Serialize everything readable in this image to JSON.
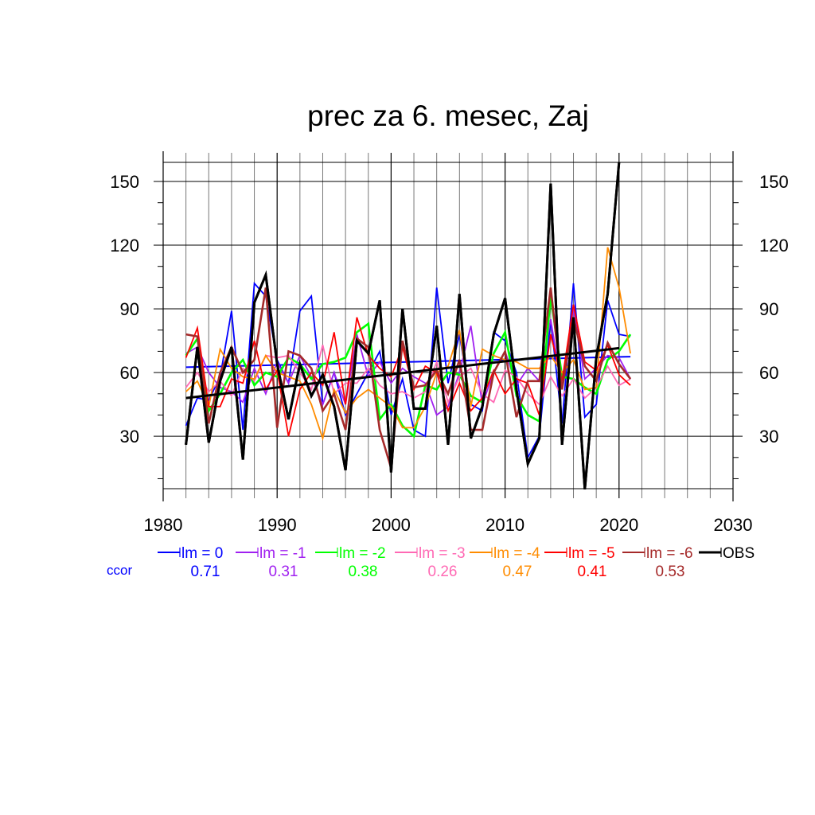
{
  "chart_data": {
    "type": "line",
    "title": "prec za 6. mesec, Zaj",
    "xlabel": "",
    "ylabel": "",
    "xlim": [
      1980,
      2030
    ],
    "ylim": [
      5.3,
      159
    ],
    "x_ticks": [
      1980,
      1990,
      2000,
      2010,
      2020,
      2030
    ],
    "x_tick_labels": [
      "1980",
      "1990",
      "2000",
      "2010",
      "2020",
      "2030"
    ],
    "y_ticks": [
      30,
      60,
      90,
      120,
      150
    ],
    "y_tick_labels": [
      "30",
      "60",
      "90",
      "120",
      "150"
    ],
    "grid": true,
    "years": [
      1982,
      1983,
      1984,
      1985,
      1986,
      1987,
      1988,
      1989,
      1990,
      1991,
      1992,
      1993,
      1994,
      1995,
      1996,
      1997,
      1998,
      1999,
      2000,
      2001,
      2002,
      2003,
      2004,
      2005,
      2006,
      2007,
      2008,
      2009,
      2010,
      2011,
      2012,
      2013,
      2014,
      2015,
      2016,
      2017,
      2018,
      2019,
      2020,
      2021
    ],
    "series": [
      {
        "name": "lm = 0",
        "color": "#0000ff",
        "ccor": "0.71",
        "values": [
          35,
          48,
          47,
          58,
          89,
          33,
          102,
          96,
          66,
          55,
          89,
          96,
          45,
          60,
          40,
          50,
          60,
          70,
          40,
          57,
          33,
          30,
          100,
          55,
          78,
          45,
          42,
          79,
          75,
          60,
          20,
          30,
          85,
          36,
          102,
          39,
          45,
          94,
          78,
          77
        ],
        "trend": [
          62.5,
          67.5
        ]
      },
      {
        "name": "lm = -1",
        "color": "#a020f0",
        "ccor": "0.31",
        "values": [
          69,
          72,
          60,
          53,
          51,
          46,
          62,
          50,
          65,
          55,
          68,
          58,
          45,
          60,
          45,
          78,
          58,
          65,
          55,
          62,
          58,
          55,
          40,
          44,
          60,
          82,
          45,
          60,
          70,
          54,
          62,
          56,
          85,
          52,
          90,
          57,
          62,
          68,
          67,
          57
        ],
        "trend": null
      },
      {
        "name": "lm = -2",
        "color": "#00ff00",
        "ccor": "0.38",
        "values": [
          68,
          76,
          42,
          50,
          60,
          66,
          54,
          60,
          58,
          67,
          64,
          57,
          64,
          65,
          67,
          79,
          83,
          38,
          45,
          35,
          30,
          54,
          52,
          60,
          59,
          49,
          46,
          69,
          79,
          49,
          40,
          37,
          96,
          58,
          57,
          53,
          50,
          66,
          70,
          78
        ],
        "trend": null
      },
      {
        "name": "lm = -3",
        "color": "#ff69b4",
        "ccor": "0.26",
        "values": [
          53,
          60,
          51,
          56,
          49,
          62,
          56,
          68,
          67,
          68,
          60,
          52,
          73,
          50,
          55,
          55,
          62,
          54,
          50,
          51,
          48,
          51,
          65,
          46,
          58,
          62,
          50,
          46,
          61,
          58,
          50,
          45,
          58,
          49,
          57,
          48,
          53,
          63,
          54,
          57
        ],
        "trend": null
      },
      {
        "name": "lm = -4",
        "color": "#ff8c00",
        "ccor": "0.47",
        "values": [
          51,
          56,
          44,
          71,
          62,
          58,
          57,
          68,
          60,
          58,
          56,
          45,
          29,
          52,
          41,
          48,
          52,
          48,
          44,
          34,
          34,
          44,
          60,
          63,
          80,
          44,
          71,
          68,
          66,
          65,
          62,
          62,
          68,
          60,
          66,
          52,
          53,
          119,
          100,
          69
        ],
        "trend": null
      },
      {
        "name": "lm = -5",
        "color": "#ff0000",
        "ccor": "0.41",
        "values": [
          67,
          81,
          44,
          44,
          57,
          55,
          75,
          52,
          61,
          30,
          52,
          60,
          54,
          79,
          45,
          86,
          68,
          62,
          58,
          72,
          52,
          63,
          60,
          42,
          55,
          42,
          48,
          61,
          50,
          57,
          55,
          40,
          78,
          56,
          92,
          65,
          61,
          73,
          59,
          54
        ],
        "trend": null
      },
      {
        "name": "lm = -6",
        "color": "#a52a2a",
        "ccor": "0.53",
        "values": [
          78,
          77,
          36,
          60,
          72,
          60,
          66,
          100,
          34,
          70,
          68,
          62,
          42,
          50,
          33,
          76,
          72,
          33,
          15,
          75,
          53,
          54,
          61,
          50,
          66,
          33,
          33,
          60,
          70,
          39,
          56,
          56,
          100,
          52,
          86,
          63,
          56,
          74,
          64,
          57
        ],
        "trend": null
      },
      {
        "name": "OBS",
        "color": "#000000",
        "ccor": "",
        "values": [
          26,
          72,
          27,
          56,
          72,
          19,
          93,
          106,
          64,
          38,
          64,
          49,
          59,
          44,
          14,
          75,
          69,
          94,
          13,
          90,
          43,
          43,
          82,
          26,
          97,
          29,
          44,
          78,
          95,
          52,
          17,
          29,
          149,
          26,
          86,
          5,
          67,
          97,
          159,
          null
        ],
        "trend": [
          48,
          71.5
        ]
      }
    ],
    "legend": {
      "placement": "bottom",
      "ccor_label": "ccor",
      "ccor_color": "#0000ff"
    }
  }
}
